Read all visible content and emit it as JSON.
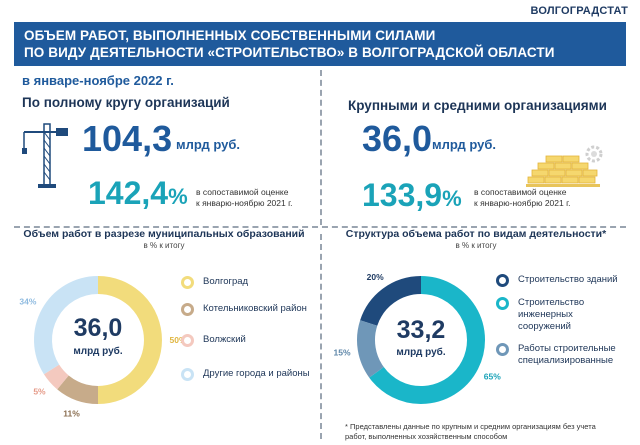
{
  "header": {
    "agency": "ВОЛГОГРАДСТАТ",
    "title_line1": "ОБЪЕМ РАБОТ, ВЫПОЛНЕННЫХ СОБСТВЕННЫМИ СИЛАМИ",
    "title_line2": "ПО ВИДУ ДЕЯТЕЛЬНОСТИ «СТРОИТЕЛЬСТВО» В ВОЛГОГРАДСКОЙ ОБЛАСТИ",
    "period": "в январе-ноябре 2022 г."
  },
  "left_summary": {
    "title": "По полному кругу организаций",
    "value": "104,3",
    "unit": "млрд руб.",
    "pct": "142,4",
    "pct_sign": "%",
    "note_line1": "в сопоставимой оценке",
    "note_line2": "к январю-ноябрю 2021 г."
  },
  "right_summary": {
    "title": "Крупными и средними организациями",
    "value": "36,0",
    "unit": "млрд руб.",
    "pct": "133,9",
    "pct_sign": "%",
    "note_line1": "в сопоставимой оценке",
    "note_line2": "к январю-ноябрю 2021 г."
  },
  "colors": {
    "accent": "#1f5a9c",
    "teal": "#1aa3b8",
    "volgograd": "#f2dc7c",
    "kotelnikovo": "#c7ab8a",
    "volzhsky": "#f4c9bf",
    "other": "#c9e3f5",
    "buildings": "#1f4a7c",
    "engineering": "#1ab6c9",
    "specialized": "#6f97b8"
  },
  "chart_data": [
    {
      "type": "pie",
      "title": "Объем работ в разрезе муниципальных образований",
      "subtitle": "в % к итогу",
      "center_value": "36,0",
      "center_unit": "млрд руб.",
      "categories": [
        "Волгоград",
        "Котельниковский район",
        "Волжский",
        "Другие города и районы"
      ],
      "values": [
        50,
        11,
        5,
        34
      ],
      "labels": [
        "50%",
        "11%",
        "5%",
        "34%"
      ]
    },
    {
      "type": "pie",
      "title": "Структура объема работ по видам деятельности*",
      "subtitle": "в % к итогу",
      "center_value": "33,2",
      "center_unit": "млрд руб.",
      "categories": [
        "Строительство зданий",
        "Строительство инженерных сооружений",
        "Работы строительные специализированные"
      ],
      "legend_lines": [
        [
          "Строительство зданий"
        ],
        [
          "Строительство",
          "инженерных",
          "сооружений"
        ],
        [
          "Работы строительные",
          "специализированные"
        ]
      ],
      "values": [
        20,
        65,
        15
      ],
      "labels": [
        "20%",
        "65%",
        "15%"
      ]
    }
  ],
  "footnote": {
    "line1": "* Представлены данные по крупным и средним организациям без учета",
    "line2": "работ, выполненных хозяйственным способом"
  }
}
